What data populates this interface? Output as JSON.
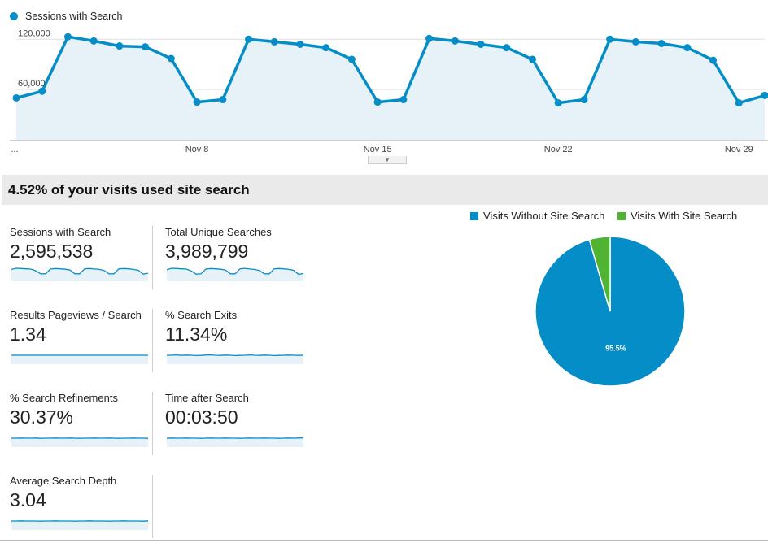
{
  "chart_data": [
    {
      "type": "area",
      "title": "",
      "series": [
        {
          "name": "Sessions with Search",
          "values": [
            50000,
            58000,
            123000,
            118000,
            112000,
            111000,
            97000,
            45000,
            48000,
            120000,
            117000,
            114000,
            110000,
            96000,
            45000,
            48000,
            121000,
            118000,
            114000,
            110000,
            96000,
            44000,
            48000,
            120000,
            117000,
            115000,
            110000,
            95000,
            44000,
            53000
          ]
        }
      ],
      "x_tick_labels": [
        "...",
        "Nov 8",
        "Nov 15",
        "Nov 22",
        "Nov 29"
      ],
      "y_tick_labels": [
        "120,000",
        "60,000"
      ],
      "ylim": [
        0,
        130000
      ],
      "grid": true,
      "legend": "top-left",
      "color": "#058dc7",
      "fill_color": "#e6f1f8"
    },
    {
      "type": "pie",
      "title": "",
      "labels": [
        "Visits Without Site Search",
        "Visits With Site Search"
      ],
      "values": [
        95.5,
        4.5
      ],
      "data_labels": [
        "95.5%",
        ""
      ],
      "colors": [
        "#058dc7",
        "#50b432"
      ],
      "legend": "top"
    }
  ],
  "header": {
    "summary_text": "4.52% of your visits used site search"
  },
  "metrics": [
    {
      "label": "Sessions with Search",
      "value": "2,595,538",
      "spark": [
        70,
        78,
        76,
        74,
        72,
        60,
        40,
        40,
        72,
        76,
        74,
        71,
        66,
        40,
        40,
        74,
        76,
        73,
        70,
        62,
        40,
        40,
        74,
        76,
        74,
        70,
        64,
        38,
        44
      ]
    },
    {
      "label": "Total Unique Searches",
      "value": "3,989,799",
      "spark": [
        68,
        78,
        76,
        74,
        72,
        60,
        38,
        40,
        72,
        76,
        74,
        71,
        66,
        40,
        40,
        74,
        77,
        73,
        70,
        62,
        40,
        40,
        74,
        76,
        74,
        70,
        64,
        36,
        42
      ]
    },
    {
      "label": "Results Pageviews / Search",
      "value": "1.34",
      "spark": [
        50,
        50,
        50,
        50,
        50,
        50,
        50,
        50,
        50,
        50,
        50,
        50,
        50,
        50,
        50,
        50,
        50,
        50,
        50,
        50,
        50,
        50,
        50,
        50,
        50,
        50,
        50,
        50,
        50
      ]
    },
    {
      "label": "% Search Exits",
      "value": "11.34%",
      "spark": [
        50,
        50,
        52,
        49,
        51,
        50,
        48,
        49,
        51,
        52,
        50,
        49,
        51,
        50,
        48,
        49,
        50,
        52,
        50,
        49,
        51,
        50,
        48,
        49,
        50,
        51,
        50,
        49,
        50
      ]
    },
    {
      "label": "% Search Refinements",
      "value": "30.37%",
      "spark": [
        50,
        50,
        51,
        50,
        50,
        51,
        49,
        50,
        50,
        51,
        50,
        50,
        51,
        50,
        49,
        50,
        50,
        51,
        50,
        50,
        51,
        50,
        49,
        50,
        50,
        51,
        50,
        50,
        49
      ]
    },
    {
      "label": "Time after Search",
      "value": "00:03:50",
      "spark": [
        50,
        51,
        50,
        50,
        51,
        50,
        50,
        49,
        50,
        51,
        50,
        50,
        51,
        50,
        50,
        49,
        50,
        51,
        50,
        50,
        51,
        50,
        50,
        49,
        50,
        51,
        50,
        51,
        52
      ]
    },
    {
      "label": "Average Search Depth",
      "value": "3.04",
      "spark": [
        50,
        50,
        51,
        50,
        50,
        50,
        49,
        50,
        50,
        51,
        50,
        50,
        50,
        49,
        50,
        50,
        51,
        50,
        50,
        50,
        49,
        50,
        50,
        51,
        50,
        50,
        50,
        49,
        51
      ]
    }
  ],
  "colors": {
    "line": "#058dc7",
    "fill": "#e6f1f8",
    "grid": "#e0e0e0",
    "axis": "#444",
    "card_border": "#cccccc",
    "header_bg": "#eaeaea"
  }
}
